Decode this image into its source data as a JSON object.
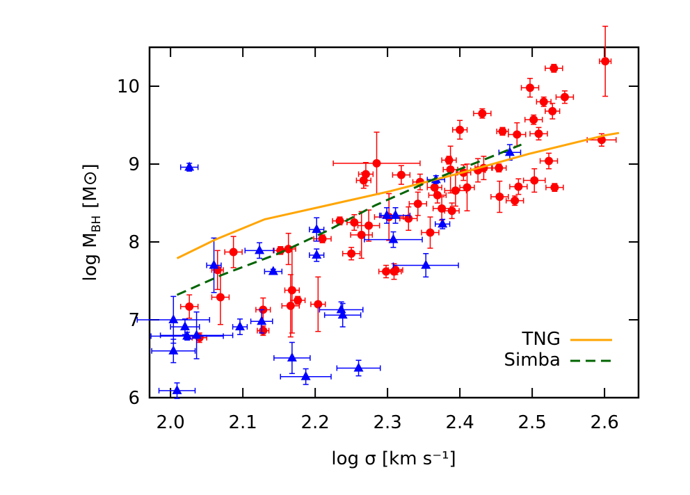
{
  "chart_data": {
    "type": "scatter",
    "x_label": "log σ [km s⁻¹]",
    "y_label": {
      "main": "log M",
      "sub": "BH",
      "unit": "[M⊙]"
    },
    "xlim": [
      1.971,
      2.647
    ],
    "ylim": [
      6,
      10.5
    ],
    "xticks": [
      {
        "value": 2,
        "label": "2.0"
      },
      2.1,
      2.2,
      2.3,
      2.4,
      2.5,
      2.6
    ],
    "yticks": [
      6,
      7,
      8,
      9,
      10
    ],
    "legend": "lower right",
    "series": [
      {
        "kind": "points",
        "marker": "circle",
        "color": "#ff0000",
        "x": [
          2.026,
          2.04,
          2.065,
          2.069,
          2.087,
          2.128,
          2.128,
          2.152,
          2.163,
          2.168,
          2.166,
          2.176,
          2.204,
          2.21,
          2.234,
          2.25,
          2.254,
          2.264,
          2.267,
          2.27,
          2.274,
          2.285,
          2.298,
          2.309,
          2.311,
          2.302,
          2.319,
          2.329,
          2.342,
          2.345,
          2.359,
          2.365,
          2.369,
          2.375,
          2.385,
          2.387,
          2.389,
          2.394,
          2.4,
          2.405,
          2.41,
          2.425,
          2.431,
          2.433,
          2.454,
          2.455,
          2.459,
          2.476,
          2.479,
          2.481,
          2.497,
          2.502,
          2.509,
          2.503,
          2.516,
          2.523,
          2.528,
          2.531,
          2.53,
          2.545,
          2.596,
          2.601
        ],
        "values": [
          7.17,
          6.77,
          7.64,
          7.29,
          7.87,
          7.13,
          6.86,
          7.89,
          7.91,
          7.38,
          7.18,
          7.25,
          7.2,
          8.04,
          8.27,
          7.85,
          8.25,
          8.09,
          8.79,
          8.87,
          8.21,
          9.01,
          7.62,
          7.62,
          7.64,
          8.32,
          8.86,
          8.3,
          8.49,
          8.77,
          8.12,
          8.7,
          8.6,
          8.43,
          9.05,
          8.93,
          8.4,
          8.66,
          9.44,
          8.89,
          8.7,
          8.92,
          9.65,
          8.95,
          8.95,
          8.58,
          9.42,
          8.53,
          9.38,
          8.71,
          9.98,
          9.57,
          9.39,
          8.79,
          9.8,
          9.04,
          9.68,
          8.7,
          10.23,
          9.86,
          9.31,
          10.32
        ],
        "xerr": [
          0.012,
          0.01,
          0.008,
          0.012,
          0.012,
          0.01,
          0.008,
          0.01,
          0.01,
          0.01,
          0.012,
          0.01,
          0.01,
          0.012,
          0.01,
          0.012,
          0.01,
          0.015,
          0.01,
          0.01,
          0.015,
          0.06,
          0.01,
          0.01,
          0.01,
          0.02,
          0.012,
          0.012,
          0.012,
          0.01,
          0.012,
          0.01,
          0.012,
          0.012,
          0.01,
          0.01,
          0.01,
          0.015,
          0.01,
          0.01,
          0.01,
          0.01,
          0.012,
          0.012,
          0.01,
          0.012,
          0.008,
          0.012,
          0.012,
          0.012,
          0.012,
          0.012,
          0.012,
          0.015,
          0.01,
          0.012,
          0.01,
          0.012,
          0.012,
          0.012,
          0.02,
          0.008
        ],
        "yerr": [
          0.15,
          0.06,
          0.25,
          0.35,
          0.2,
          0.15,
          0.06,
          0.05,
          0.2,
          0.55,
          0.4,
          0.05,
          0.35,
          0.05,
          0.05,
          0.08,
          0.1,
          0.3,
          0.1,
          0.15,
          0.2,
          0.4,
          0.08,
          0.1,
          0.06,
          0.3,
          0.12,
          0.15,
          0.15,
          0.1,
          0.2,
          0.1,
          0.1,
          0.15,
          0.05,
          0.3,
          0.1,
          0.2,
          0.12,
          0.1,
          0.3,
          0.15,
          0.06,
          0.15,
          0.05,
          0.2,
          0.05,
          0.06,
          0.15,
          0.1,
          0.12,
          0.06,
          0.08,
          0.15,
          0.06,
          0.1,
          0.1,
          0.05,
          0.05,
          0.08,
          0.08,
          0.45
        ]
      },
      {
        "kind": "points",
        "marker": "triangle",
        "color": "#0000ff",
        "x": [
          2.026,
          2.004,
          2.004,
          2.02,
          2.023,
          2.036,
          2.06,
          2.096,
          2.123,
          2.126,
          2.142,
          2.168,
          2.187,
          2.202,
          2.202,
          2.236,
          2.238,
          2.26,
          2.299,
          2.308,
          2.311,
          2.353,
          2.367,
          2.376,
          2.469,
          2.009
        ],
        "values": [
          8.96,
          7.0,
          6.6,
          6.91,
          6.79,
          6.8,
          7.7,
          6.91,
          7.89,
          6.98,
          7.62,
          6.51,
          6.27,
          8.16,
          7.83,
          7.13,
          7.06,
          6.38,
          8.34,
          8.03,
          8.34,
          7.7,
          8.8,
          8.23,
          9.15,
          6.09
        ],
        "xerr": [
          0.012,
          0.05,
          0.03,
          0.02,
          0.05,
          0.05,
          0.01,
          0.01,
          0.02,
          0.015,
          0.012,
          0.025,
          0.035,
          0.01,
          0.01,
          0.03,
          0.025,
          0.03,
          0.01,
          0.04,
          0.02,
          0.045,
          0.012,
          0.01,
          0.015,
          0.025
        ],
        "yerr": [
          0.05,
          0.3,
          0.15,
          0.1,
          0.05,
          0.3,
          0.35,
          0.1,
          0.1,
          0.15,
          0.03,
          0.2,
          0.1,
          0.15,
          0.08,
          0.1,
          0.15,
          0.1,
          0.1,
          0.1,
          0.1,
          0.15,
          0.05,
          0.06,
          0.1,
          0.1
        ]
      },
      {
        "kind": "line",
        "name": "TNG",
        "color": "#ffa500",
        "dash": false,
        "x": [
          2.009,
          2.062,
          2.13,
          2.207,
          2.303,
          2.399,
          2.495,
          2.601,
          2.62
        ],
        "values": [
          7.79,
          8.03,
          8.29,
          8.45,
          8.65,
          8.88,
          9.13,
          9.37,
          9.4
        ]
      },
      {
        "kind": "line",
        "name": "Simba",
        "color": "#006400",
        "dash": true,
        "x": [
          2.009,
          2.072,
          2.149,
          2.216,
          2.283,
          2.36,
          2.437,
          2.485
        ],
        "values": [
          7.32,
          7.58,
          7.85,
          8.14,
          8.47,
          8.79,
          9.07,
          9.25
        ]
      }
    ]
  }
}
